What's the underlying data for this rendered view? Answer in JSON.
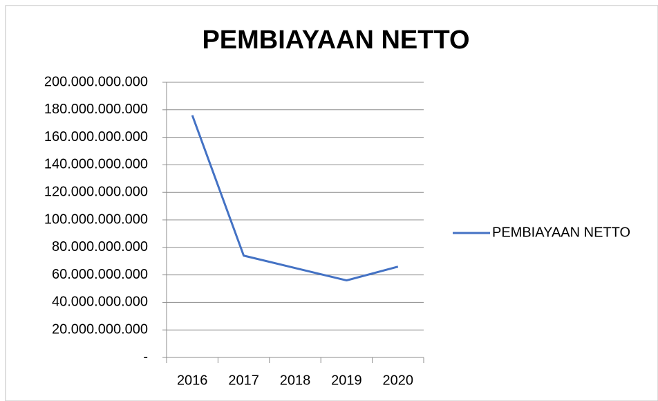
{
  "chart_data": {
    "type": "line",
    "title": "PEMBIAYAAN NETTO",
    "categories": [
      "2016",
      "2017",
      "2018",
      "2019",
      "2020"
    ],
    "series": [
      {
        "name": "PEMBIAYAAN NETTO",
        "color": "#4472c4",
        "values": [
          176000000000,
          74000000000,
          65000000000,
          56000000000,
          66000000000
        ]
      }
    ],
    "ylim": [
      0,
      200000000000
    ],
    "yticks": [
      {
        "value": 0,
        "label": "-"
      },
      {
        "value": 20000000000,
        "label": "20.000.000.000"
      },
      {
        "value": 40000000000,
        "label": "40.000.000.000"
      },
      {
        "value": 60000000000,
        "label": "60.000.000.000"
      },
      {
        "value": 80000000000,
        "label": "80.000.000.000"
      },
      {
        "value": 100000000000,
        "label": "100.000.000.000"
      },
      {
        "value": 120000000000,
        "label": "120.000.000.000"
      },
      {
        "value": 140000000000,
        "label": "140.000.000.000"
      },
      {
        "value": 160000000000,
        "label": "160.000.000.000"
      },
      {
        "value": 180000000000,
        "label": "180.000.000.000"
      },
      {
        "value": 200000000000,
        "label": "200.000.000.000"
      }
    ],
    "grid": true,
    "legend": "right"
  }
}
